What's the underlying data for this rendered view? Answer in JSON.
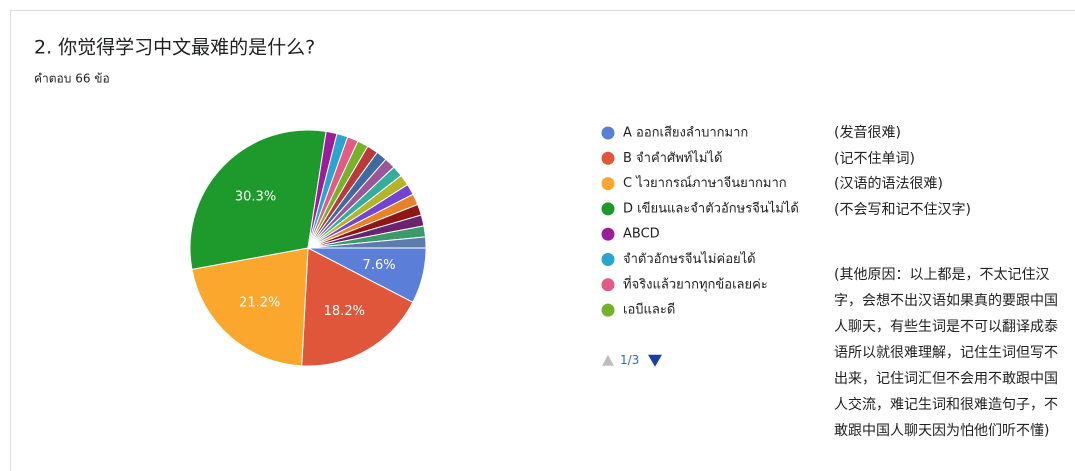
{
  "chart_data": {
    "type": "pie",
    "title": "2. 你觉得学习中文最难的是什么?",
    "subtitle": "คำตอบ 66 ข้อ",
    "categories": [
      "A ออกเสียงลำบากมาก",
      "B จำคำศัพท์ไม่ได้",
      "C ไวยากรณ์ภาษาจีนยากมาก",
      "D เขียนและจำตัวอักษรจีนไม่ได้",
      "ABCD",
      "จำตัวอักษรจีนไม่ค่อยได้",
      "ที่จริงแล้วยากทุกข้อเลยค่ะ",
      "เอบีและดี",
      null,
      null,
      null,
      null,
      null,
      null,
      null,
      null,
      null,
      null,
      null
    ],
    "values": [
      7.6,
      18.2,
      21.2,
      30.3,
      1.5,
      1.5,
      1.5,
      1.5,
      1.5,
      1.5,
      1.5,
      1.5,
      1.5,
      1.5,
      1.5,
      1.5,
      1.5,
      1.5,
      1.5
    ],
    "value_labels": [
      "7.6%",
      "18.2%",
      "21.2%",
      "30.3%",
      null,
      null,
      null,
      null,
      null,
      null,
      null,
      null,
      null,
      null,
      null,
      null,
      null,
      null,
      null
    ],
    "colors": [
      "#5b7fd8",
      "#e0563b",
      "#fba62c",
      "#1e9a2c",
      "#9c1d9c",
      "#2aa4d0",
      "#e25a86",
      "#76b12a",
      "#b93a3a",
      "#3d6aa0",
      "#9b559b",
      "#36ad9c",
      "#b4b42a",
      "#7244cf",
      "#e8822a",
      "#8e1616",
      "#6b2370",
      "#3c9a6a",
      "#5e7cab"
    ],
    "legend_position": "right",
    "pager": "1/3",
    "notes": [
      "(发音很难)",
      "(记不住单词)",
      "(汉语的语法很难)",
      "(不会写和记不住汉字)",
      "(其他原因：以上都是，不太记住汉字，会想不出汉语如果真的要跟中国人聊天，有些生词是不可以翻译成泰语所以就很难理解，记住生词但写不出来，记住词汇但不会用不敢跟中国人交流，难记生词和很难造句子，不敢跟中国人聊天因为怕他们听不懂)"
    ]
  }
}
